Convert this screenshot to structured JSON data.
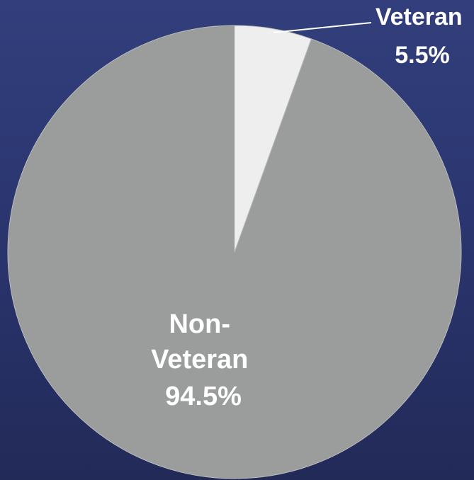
{
  "chart_data": {
    "type": "pie",
    "title": "",
    "start_angle_deg": 0,
    "direction": "clockwise",
    "legend": "none",
    "slices": [
      {
        "name": "Veteran",
        "value": 5.5,
        "label_lines": [
          "Veteran",
          "5.5%"
        ],
        "color": "#eeeeee"
      },
      {
        "name": "Non-Veteran",
        "value": 94.5,
        "label_lines": [
          "Non-",
          "Veteran",
          "94.5%"
        ],
        "color": "#9a9d9c"
      }
    ]
  },
  "colors": {
    "background_top": "#323f7c",
    "background_bottom": "#222a58",
    "label_text": "#ffffff",
    "slice_border": "#b9bcbb",
    "leader_line": "#ffffff"
  }
}
